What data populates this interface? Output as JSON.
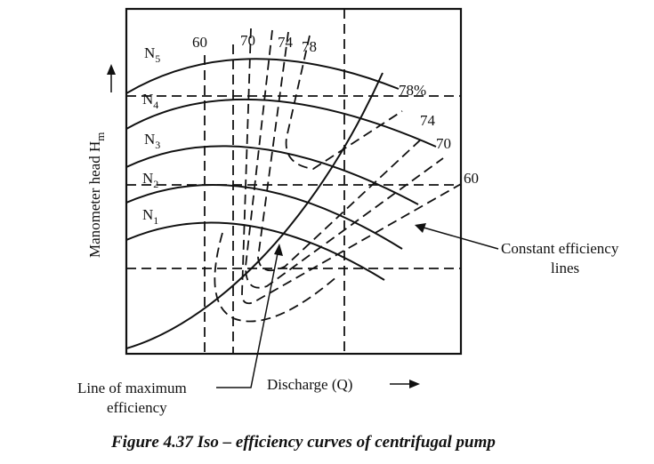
{
  "diagram": {
    "y_axis_label": "Manometer head H",
    "y_axis_subscript": "m",
    "x_axis_label": "Discharge (Q)",
    "speed_curves": [
      {
        "name": "N",
        "sub": "5"
      },
      {
        "name": "N",
        "sub": "4"
      },
      {
        "name": "N",
        "sub": "3"
      },
      {
        "name": "N",
        "sub": "2"
      },
      {
        "name": "N",
        "sub": "1"
      }
    ],
    "efficiency_labels_top": [
      "60",
      "70",
      "74",
      "78"
    ],
    "efficiency_labels_right": [
      "78%",
      "74",
      "70",
      "60"
    ],
    "annotations": {
      "constant_efficiency_line1": "Constant efficiency",
      "constant_efficiency_line2": "lines",
      "max_efficiency_line1": "Line of maximum",
      "max_efficiency_line2": "efficiency"
    },
    "caption": "Figure 4.37 Iso – efficiency curves of centrifugal pump"
  }
}
